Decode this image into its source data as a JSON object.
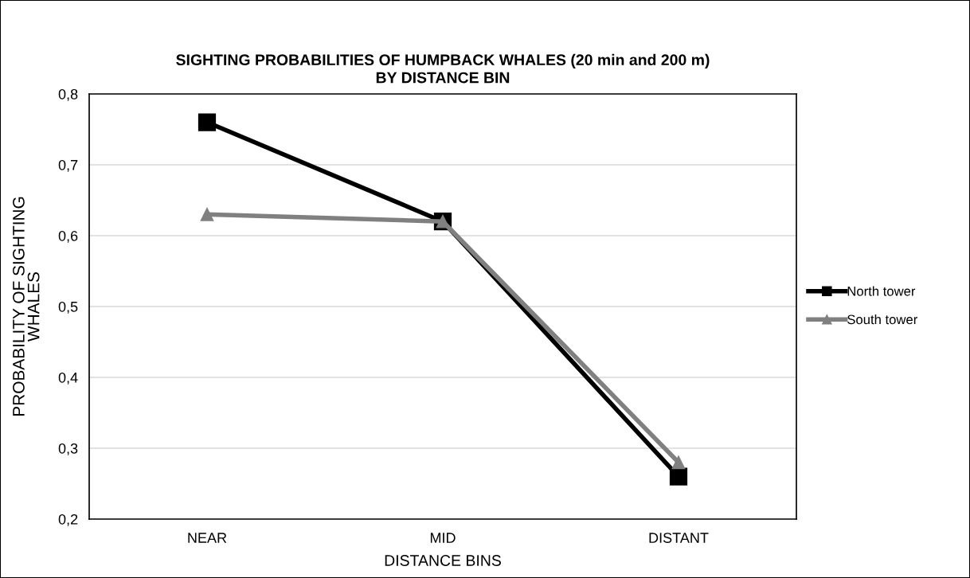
{
  "chart_data": {
    "type": "line",
    "title": "SIGHTING PROBABILITIES OF HUMPBACK WHALES (20 min and 200 m)\nBY DISTANCE BIN",
    "xlabel": "DISTANCE BINS",
    "ylabel": "PROBABILITY OF SIGHTING\nWHALES",
    "categories": [
      "NEAR",
      "MID",
      "DISTANT"
    ],
    "series": [
      {
        "name": "North tower",
        "color": "#000000",
        "marker": "square",
        "values": [
          0.76,
          0.62,
          0.26
        ]
      },
      {
        "name": "South tower",
        "color": "#808080",
        "marker": "triangle",
        "values": [
          0.63,
          0.62,
          0.28
        ]
      }
    ],
    "ylim": [
      0.2,
      0.8
    ],
    "yticks": [
      {
        "value": 0.2,
        "label": "0,2"
      },
      {
        "value": 0.3,
        "label": "0,3"
      },
      {
        "value": 0.4,
        "label": "0,4"
      },
      {
        "value": 0.5,
        "label": "0,5"
      },
      {
        "value": 0.6,
        "label": "0,6"
      },
      {
        "value": 0.7,
        "label": "0,7"
      },
      {
        "value": 0.8,
        "label": "0,8"
      }
    ],
    "grid": "y",
    "legend": "right",
    "line_style": "solid"
  }
}
